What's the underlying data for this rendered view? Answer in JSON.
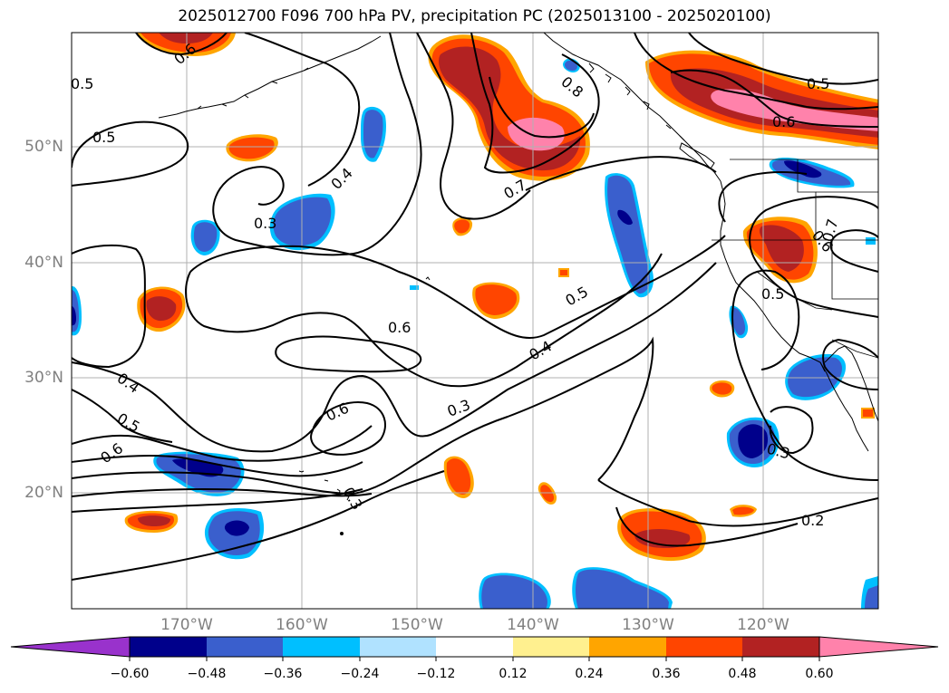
{
  "title": "2025012700 F096 700 hPa PV, precipitation PC (2025013100 - 2025020100)",
  "colors": {
    "land_lines": "#000000",
    "contour": "#000000",
    "grid": "#b0b0b0",
    "axis_label": "#808080",
    "neg": [
      "#9932cc",
      "#00008b",
      "#3a5fcd",
      "#00bfff",
      "#b0e2ff"
    ],
    "mid": "#ffffff",
    "pos": [
      "#fff08f",
      "#ffa500",
      "#ff4500",
      "#b22222",
      "#ff82ab"
    ]
  },
  "axes": {
    "lon_labels": [
      "170°W",
      "160°W",
      "150°W",
      "140°W",
      "130°W",
      "120°W"
    ],
    "lat_labels": [
      "50°N",
      "40°N",
      "30°N",
      "20°N"
    ]
  },
  "colorbar": {
    "ticks": [
      "−0.60",
      "−0.48",
      "−0.36",
      "−0.24",
      "−0.12",
      "0.12",
      "0.24",
      "0.36",
      "0.48",
      "0.60"
    ]
  },
  "contour_labels": [
    "0.6",
    "0.5",
    "0.5",
    "0.4",
    "0.3",
    "0.8",
    "0.7",
    "0.5",
    "0.6",
    "0.7",
    "0.6",
    "0.5",
    "0.6",
    "0.5",
    "0.4",
    "0.3",
    "0.6",
    "0.4",
    "0.5",
    "0.6",
    "0.2",
    "0.3",
    "0.3"
  ]
}
